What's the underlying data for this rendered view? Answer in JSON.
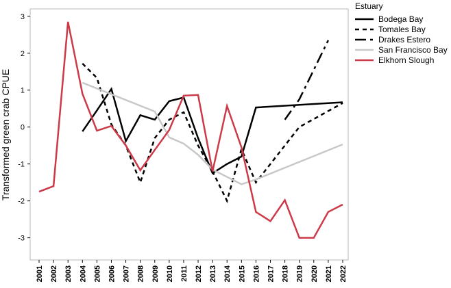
{
  "chart_data": {
    "type": "line",
    "ylabel": "Transformed green crab CPUE",
    "xlabel": "",
    "ylim": [
      -3.6,
      3.2
    ],
    "xlim": [
      2001,
      2022
    ],
    "yticks": [
      -3,
      -2,
      -1,
      0,
      1,
      2,
      3
    ],
    "xticks": [
      "2001",
      "2002",
      "2003",
      "2004",
      "2005",
      "2006",
      "2007",
      "2008",
      "2009",
      "2010",
      "2011",
      "2012",
      "2013",
      "2014",
      "2015",
      "2016",
      "2017",
      "2018",
      "2019",
      "2020",
      "2021",
      "2022"
    ],
    "grid": false,
    "legend": {
      "title": "Estuary",
      "placement": "top-right-outside"
    },
    "series": [
      {
        "name": "Bodega Bay",
        "style": "solid",
        "color": "#000000",
        "points": [
          [
            2004,
            -0.12
          ],
          [
            2005,
            0.45
          ],
          [
            2006,
            1.03
          ],
          [
            2007,
            -0.38
          ],
          [
            2008,
            0.32
          ],
          [
            2009,
            0.2
          ],
          [
            2010,
            0.7
          ],
          [
            2011,
            0.8
          ],
          [
            2012,
            -0.3
          ],
          [
            2013,
            -1.25
          ],
          [
            2014,
            -1.0
          ],
          [
            2015,
            -0.8
          ],
          [
            2016,
            0.53
          ],
          [
            2022,
            0.67
          ]
        ]
      },
      {
        "name": "Tomales Bay",
        "style": "dotted",
        "color": "#000000",
        "points": [
          [
            2004,
            1.72
          ],
          [
            2005,
            1.33
          ],
          [
            2006,
            0.07
          ],
          [
            2007,
            -0.5
          ],
          [
            2008,
            -1.5
          ],
          [
            2009,
            -0.3
          ],
          [
            2010,
            0.2
          ],
          [
            2011,
            0.4
          ],
          [
            2012,
            -0.5
          ],
          [
            2013,
            -1.2
          ],
          [
            2014,
            -2.0
          ],
          [
            2015,
            -0.6
          ],
          [
            2016,
            -1.5
          ],
          [
            2019,
            0.0
          ],
          [
            2022,
            0.65
          ]
        ]
      },
      {
        "name": "Drakes Estero",
        "style": "dashdot",
        "color": "#000000",
        "points": [
          [
            2018,
            0.2
          ],
          [
            2019,
            0.75
          ],
          [
            2021,
            2.35
          ]
        ]
      },
      {
        "name": "San Francisco Bay",
        "style": "solid",
        "color": "#c8c8c8",
        "points": [
          [
            2004,
            1.2
          ],
          [
            2009,
            0.42
          ],
          [
            2010,
            -0.28
          ],
          [
            2011,
            -0.45
          ],
          [
            2012,
            -0.75
          ],
          [
            2013,
            -1.15
          ],
          [
            2014,
            -1.35
          ],
          [
            2015,
            -1.55
          ],
          [
            2016,
            -1.42
          ],
          [
            2022,
            -0.47
          ]
        ]
      },
      {
        "name": "Elkhorn Slough",
        "style": "solid",
        "color": "#cc3a48",
        "points": [
          [
            2001,
            -1.75
          ],
          [
            2002,
            -1.6
          ],
          [
            2003,
            2.85
          ],
          [
            2004,
            0.9
          ],
          [
            2005,
            -0.1
          ],
          [
            2006,
            0.03
          ],
          [
            2007,
            -0.5
          ],
          [
            2008,
            -1.17
          ],
          [
            2009,
            -0.62
          ],
          [
            2010,
            -0.08
          ],
          [
            2011,
            0.85
          ],
          [
            2012,
            0.87
          ],
          [
            2013,
            -1.2
          ],
          [
            2014,
            0.57
          ],
          [
            2015,
            -0.55
          ],
          [
            2016,
            -2.3
          ],
          [
            2017,
            -2.55
          ],
          [
            2018,
            -1.98
          ],
          [
            2019,
            -3.0
          ],
          [
            2020,
            -3.0
          ],
          [
            2021,
            -2.3
          ],
          [
            2022,
            -2.1
          ]
        ]
      }
    ]
  }
}
